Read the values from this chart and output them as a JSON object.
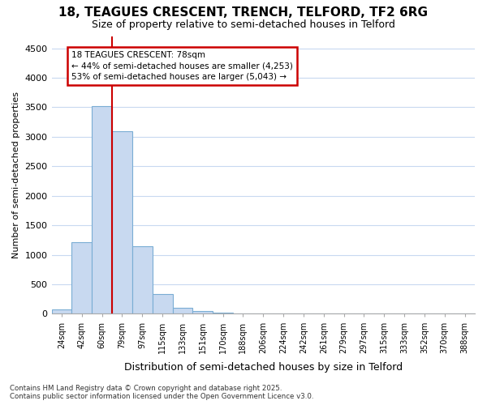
{
  "title1": "18, TEAGUES CRESCENT, TRENCH, TELFORD, TF2 6RG",
  "title2": "Size of property relative to semi-detached houses in Telford",
  "xlabel": "Distribution of semi-detached houses by size in Telford",
  "ylabel": "Number of semi-detached properties",
  "categories": [
    "24sqm",
    "42sqm",
    "60sqm",
    "79sqm",
    "97sqm",
    "115sqm",
    "133sqm",
    "151sqm",
    "170sqm",
    "188sqm",
    "206sqm",
    "224sqm",
    "242sqm",
    "261sqm",
    "279sqm",
    "297sqm",
    "315sqm",
    "333sqm",
    "352sqm",
    "370sqm",
    "388sqm"
  ],
  "values": [
    75,
    1220,
    3520,
    3100,
    1150,
    340,
    105,
    50,
    20,
    5,
    5,
    0,
    0,
    0,
    0,
    0,
    0,
    0,
    0,
    0,
    0
  ],
  "bar_color": "#c8d9f0",
  "bar_edge_color": "#7aadd4",
  "vline_color": "#cc0000",
  "vline_x": 2.5,
  "annotation_title": "18 TEAGUES CRESCENT: 78sqm",
  "annotation_line1": "← 44% of semi-detached houses are smaller (4,253)",
  "annotation_line2": "53% of semi-detached houses are larger (5,043) →",
  "annotation_box_color": "#cc0000",
  "ylim": [
    0,
    4700
  ],
  "yticks": [
    0,
    500,
    1000,
    1500,
    2000,
    2500,
    3000,
    3500,
    4000,
    4500
  ],
  "footer": "Contains HM Land Registry data © Crown copyright and database right 2025.\nContains public sector information licensed under the Open Government Licence v3.0.",
  "background_color": "#ffffff",
  "grid_color": "#c8d9f0"
}
